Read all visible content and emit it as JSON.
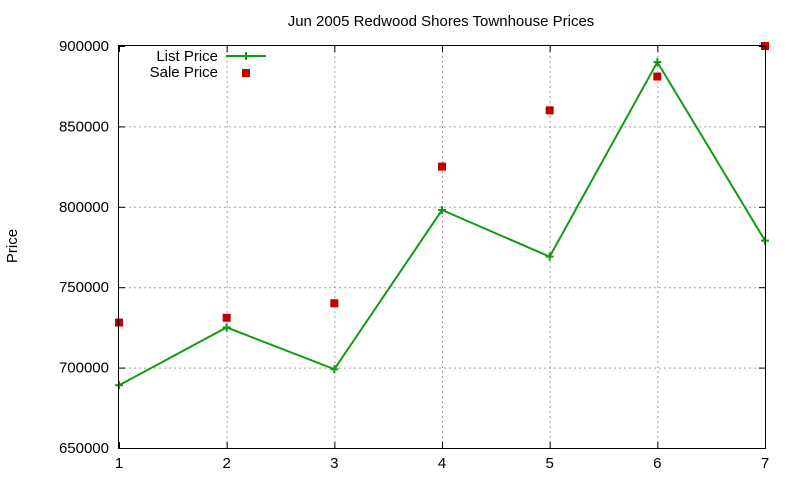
{
  "chart_data": {
    "type": "line",
    "title": "Jun 2005 Redwood Shores Townhouse Prices",
    "xlabel": "",
    "ylabel": "Price",
    "xlim": [
      1,
      7
    ],
    "ylim": [
      650000,
      900000
    ],
    "x": [
      1,
      2,
      3,
      4,
      5,
      6,
      7
    ],
    "x_ticks": [
      "1",
      "2",
      "3",
      "4",
      "5",
      "6",
      "7"
    ],
    "y_ticks": [
      "650000",
      "700000",
      "750000",
      "800000",
      "850000",
      "900000"
    ],
    "grid": true,
    "legend_position": "top-left",
    "series": [
      {
        "name": "List Price",
        "style": "linespoints",
        "marker": "plus",
        "color": "#109e10",
        "values": [
          689000,
          725000,
          699000,
          798000,
          769000,
          890000,
          779000
        ]
      },
      {
        "name": "Sale Price",
        "style": "points",
        "marker": "square",
        "color": "#c00000",
        "values": [
          728000,
          731000,
          740000,
          825000,
          860000,
          881000,
          900000
        ]
      }
    ]
  }
}
